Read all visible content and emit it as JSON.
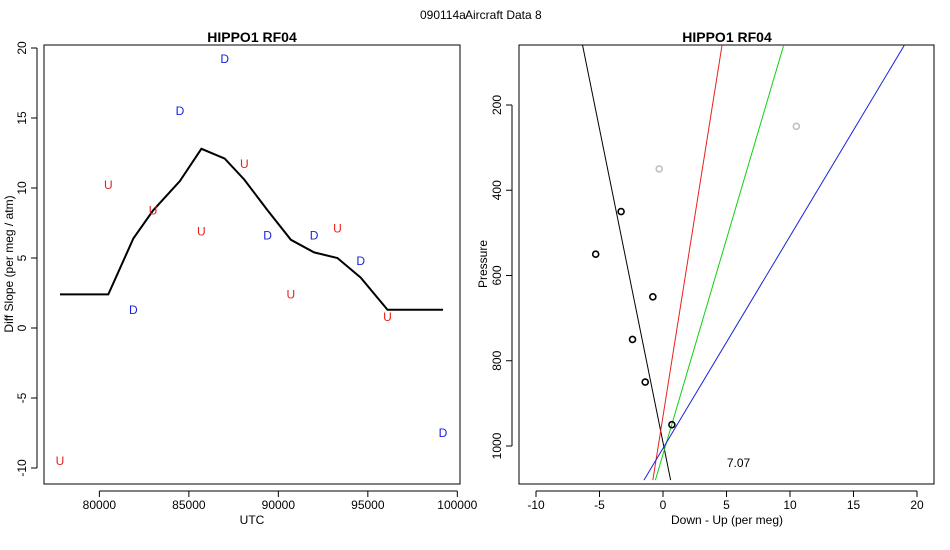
{
  "figure": {
    "supertitle_id": "090114a",
    "supertitle_text": "Aircraft Data 8"
  },
  "chart_data": [
    {
      "type": "scatter",
      "title": "HIPPO1 RF04",
      "xlabel": "UTC",
      "ylabel": "Diff Slope (per meg / atm)",
      "xlim": [
        77500,
        100000
      ],
      "ylim": [
        -10.5,
        20
      ],
      "xticks": [
        80000,
        85000,
        90000,
        95000,
        100000
      ],
      "yticks": [
        -10,
        -5,
        0,
        5,
        10,
        15,
        20
      ],
      "ytick_labels": [
        "-10",
        "-5",
        "0",
        "5",
        "10",
        "15",
        "20"
      ],
      "colors": {
        "U": "#e8201c",
        "D": "#1a22d8",
        "line": "#000000"
      },
      "points": [
        {
          "label": "U",
          "x": 77800,
          "y": -9.5
        },
        {
          "label": "U",
          "x": 80500,
          "y": 10.2
        },
        {
          "label": "D",
          "x": 81900,
          "y": 1.3
        },
        {
          "label": "U",
          "x": 83000,
          "y": 8.4
        },
        {
          "label": "D",
          "x": 84500,
          "y": 15.5
        },
        {
          "label": "U",
          "x": 85700,
          "y": 6.9
        },
        {
          "label": "D",
          "x": 87000,
          "y": 19.2
        },
        {
          "label": "U",
          "x": 88100,
          "y": 11.7
        },
        {
          "label": "D",
          "x": 89400,
          "y": 6.6
        },
        {
          "label": "U",
          "x": 90700,
          "y": 2.4
        },
        {
          "label": "D",
          "x": 92000,
          "y": 6.6
        },
        {
          "label": "U",
          "x": 93300,
          "y": 7.1
        },
        {
          "label": "D",
          "x": 94600,
          "y": 4.8
        },
        {
          "label": "U",
          "x": 96100,
          "y": 0.8
        },
        {
          "label": "D",
          "x": 99200,
          "y": -7.5
        }
      ],
      "line": {
        "x": [
          77800,
          80500,
          81900,
          83000,
          84500,
          85700,
          87000,
          88100,
          89400,
          90700,
          92000,
          93300,
          94600,
          96100,
          99200
        ],
        "y": [
          2.4,
          2.4,
          6.4,
          8.4,
          10.5,
          12.8,
          12.1,
          10.6,
          8.4,
          6.3,
          5.4,
          5.0,
          3.6,
          1.3,
          1.3
        ]
      }
    },
    {
      "type": "scatter",
      "title": "HIPPO1 RF04",
      "xlabel": "Down - Up (per meg)",
      "ylabel": "Pressure",
      "xlim": [
        -10,
        20
      ],
      "ylim": [
        1080,
        50
      ],
      "y_reversed": true,
      "xticks": [
        -10,
        -5,
        0,
        5,
        10,
        15,
        20
      ],
      "xtick_labels": [
        "-10",
        "-5",
        "0",
        "5",
        "10",
        "15",
        "20"
      ],
      "yticks": [
        200,
        400,
        600,
        800,
        1000
      ],
      "ytick_labels": [
        "200",
        "400",
        "600",
        "800",
        "1000"
      ],
      "points": [
        {
          "x": 0.7,
          "y": 950,
          "color": "#000000"
        },
        {
          "x": -1.4,
          "y": 850,
          "color": "#000000"
        },
        {
          "x": -2.4,
          "y": 750,
          "color": "#000000"
        },
        {
          "x": -0.8,
          "y": 650,
          "color": "#000000"
        },
        {
          "x": -5.3,
          "y": 550,
          "color": "#000000"
        },
        {
          "x": -3.3,
          "y": 450,
          "color": "#000000"
        },
        {
          "x": -0.3,
          "y": 350,
          "color": "#c0c0c0"
        },
        {
          "x": 10.5,
          "y": 250,
          "color": "#c0c0c0"
        }
      ],
      "lines": [
        {
          "name": "black",
          "color": "#000000",
          "x": [
            -6.4,
            0.6
          ],
          "y": [
            50,
            1080
          ]
        },
        {
          "name": "red",
          "color": "#e8201c",
          "x": [
            4.7,
            -0.8
          ],
          "y": [
            50,
            1080
          ]
        },
        {
          "name": "green",
          "color": "#10d010",
          "x": [
            9.6,
            -0.6
          ],
          "y": [
            50,
            1080
          ]
        },
        {
          "name": "blue",
          "color": "#1a22d8",
          "x": [
            19.2,
            -1.5
          ],
          "y": [
            50,
            1080
          ]
        }
      ],
      "annotation": {
        "text": "7.07",
        "x": 5,
        "y": 1040
      }
    }
  ]
}
